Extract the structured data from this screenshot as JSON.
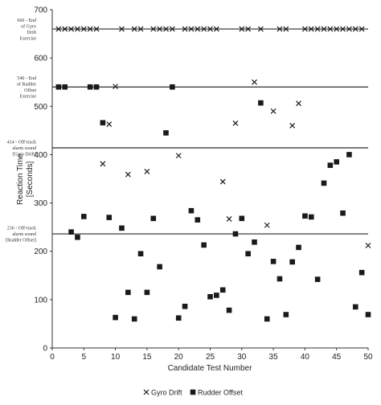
{
  "chart_data": {
    "type": "scatter",
    "xlabel": "Candidate Test Number",
    "ylabel": "Reaction Time [Seconds]",
    "xlim": [
      0,
      50
    ],
    "ylim": [
      0,
      700
    ],
    "xticks": [
      0,
      5,
      10,
      15,
      20,
      25,
      30,
      35,
      40,
      45,
      50
    ],
    "yticks": [
      0,
      100,
      200,
      300,
      400,
      500,
      600,
      700
    ],
    "grid": false,
    "legend_position": "bottom",
    "reference_lines": [
      {
        "value": 660,
        "label_lines": [
          "660 - End",
          "of Gyro",
          "Drift",
          "Exercise"
        ]
      },
      {
        "value": 540,
        "label_lines": [
          "540 - End",
          "of Rudder",
          "Offset",
          "Exercise"
        ]
      },
      {
        "value": 414,
        "label_lines": [
          "414 - Off-track",
          "alarm sound",
          "[Gyro Drift]"
        ]
      },
      {
        "value": 236,
        "label_lines": [
          "236 - Off-track",
          "alarm sound",
          "[Rudder Offset]"
        ]
      }
    ],
    "series": [
      {
        "name": "Gyro Drift",
        "marker": "x",
        "color": "#1a1a1a",
        "points": [
          [
            1,
            660
          ],
          [
            2,
            660
          ],
          [
            3,
            660
          ],
          [
            4,
            660
          ],
          [
            5,
            660
          ],
          [
            6,
            660
          ],
          [
            7,
            660
          ],
          [
            8,
            381
          ],
          [
            9,
            463
          ],
          [
            10,
            541
          ],
          [
            11,
            660
          ],
          [
            12,
            359
          ],
          [
            13,
            660
          ],
          [
            14,
            660
          ],
          [
            15,
            365
          ],
          [
            16,
            660
          ],
          [
            17,
            660
          ],
          [
            18,
            660
          ],
          [
            19,
            660
          ],
          [
            20,
            398
          ],
          [
            21,
            660
          ],
          [
            22,
            660
          ],
          [
            23,
            660
          ],
          [
            24,
            660
          ],
          [
            25,
            660
          ],
          [
            26,
            660
          ],
          [
            27,
            344
          ],
          [
            28,
            267
          ],
          [
            29,
            465
          ],
          [
            30,
            660
          ],
          [
            31,
            660
          ],
          [
            32,
            550
          ],
          [
            33,
            660
          ],
          [
            34,
            254
          ],
          [
            35,
            490
          ],
          [
            36,
            660
          ],
          [
            37,
            660
          ],
          [
            38,
            460
          ],
          [
            39,
            506
          ],
          [
            40,
            660
          ],
          [
            41,
            660
          ],
          [
            42,
            660
          ],
          [
            43,
            660
          ],
          [
            44,
            660
          ],
          [
            45,
            660
          ],
          [
            46,
            660
          ],
          [
            47,
            660
          ],
          [
            48,
            660
          ],
          [
            49,
            660
          ],
          [
            50,
            212
          ]
        ]
      },
      {
        "name": "Rudder Offset",
        "marker": "square",
        "color": "#1a1a1a",
        "points": [
          [
            1,
            540
          ],
          [
            2,
            540
          ],
          [
            3,
            240
          ],
          [
            4,
            229
          ],
          [
            5,
            272
          ],
          [
            6,
            540
          ],
          [
            7,
            540
          ],
          [
            8,
            466
          ],
          [
            9,
            270
          ],
          [
            10,
            63
          ],
          [
            11,
            248
          ],
          [
            12,
            115
          ],
          [
            13,
            60
          ],
          [
            14,
            195
          ],
          [
            15,
            115
          ],
          [
            16,
            268
          ],
          [
            17,
            168
          ],
          [
            18,
            445
          ],
          [
            19,
            540
          ],
          [
            20,
            62
          ],
          [
            21,
            86
          ],
          [
            22,
            284
          ],
          [
            23,
            265
          ],
          [
            24,
            213
          ],
          [
            25,
            106
          ],
          [
            26,
            109
          ],
          [
            27,
            120
          ],
          [
            28,
            78
          ],
          [
            29,
            236
          ],
          [
            30,
            268
          ],
          [
            31,
            195
          ],
          [
            32,
            219
          ],
          [
            33,
            507
          ],
          [
            34,
            60
          ],
          [
            35,
            179
          ],
          [
            36,
            143
          ],
          [
            37,
            69
          ],
          [
            38,
            178
          ],
          [
            39,
            208
          ],
          [
            40,
            273
          ],
          [
            41,
            271
          ],
          [
            42,
            142
          ],
          [
            43,
            341
          ],
          [
            44,
            378
          ],
          [
            45,
            385
          ],
          [
            46,
            279
          ],
          [
            47,
            400
          ],
          [
            48,
            85
          ],
          [
            49,
            156
          ],
          [
            50,
            69
          ]
        ]
      }
    ]
  }
}
